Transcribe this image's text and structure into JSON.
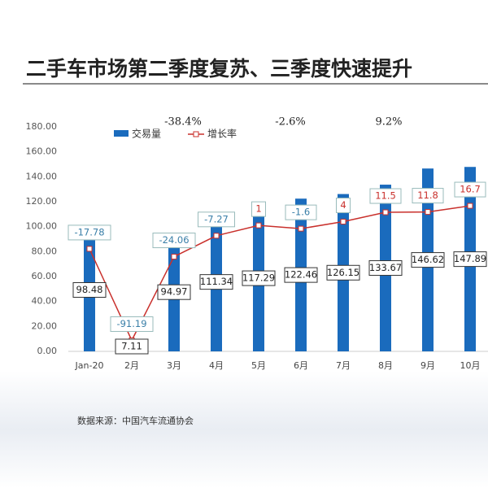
{
  "chart_data": {
    "type": "bar",
    "title": "二手车市场第二季度复苏、三季度快速提升",
    "annotations": [
      "-38.4%",
      "-2.6%",
      "9.2%"
    ],
    "source": "数据来源：中国汽车流通协会",
    "categories": [
      "Jan-20",
      "2月",
      "3月",
      "4月",
      "5月",
      "6月",
      "7月",
      "8月",
      "9月",
      "10月"
    ],
    "series": [
      {
        "name": "交易量",
        "color": "#1a6bbd",
        "values": [
          98.48,
          7.11,
          94.97,
          111.34,
          117.29,
          122.46,
          126.15,
          133.67,
          146.62,
          147.89
        ]
      },
      {
        "name": "增长率",
        "color": "#c9302c",
        "axis": "y2",
        "values": [
          -17.78,
          -91.19,
          -24.06,
          -7.27,
          1,
          -1.6,
          4,
          11.5,
          11.8,
          16.7
        ]
      }
    ],
    "ylim": [
      0,
      180
    ],
    "yticks": [
      {
        "value": 0,
        "label": "0.00"
      },
      {
        "value": 20,
        "label": "20.00"
      },
      {
        "value": 40,
        "label": "40.00"
      },
      {
        "value": 60,
        "label": "60.00"
      },
      {
        "value": 80,
        "label": "80.00"
      },
      {
        "value": 100,
        "label": "100.00"
      },
      {
        "value": 120,
        "label": "120.00"
      },
      {
        "value": 140,
        "label": "140.00"
      },
      {
        "value": 160,
        "label": "160.00"
      },
      {
        "value": 180,
        "label": "180.00"
      }
    ],
    "y2lim": [
      -100,
      80
    ],
    "grid": false
  }
}
